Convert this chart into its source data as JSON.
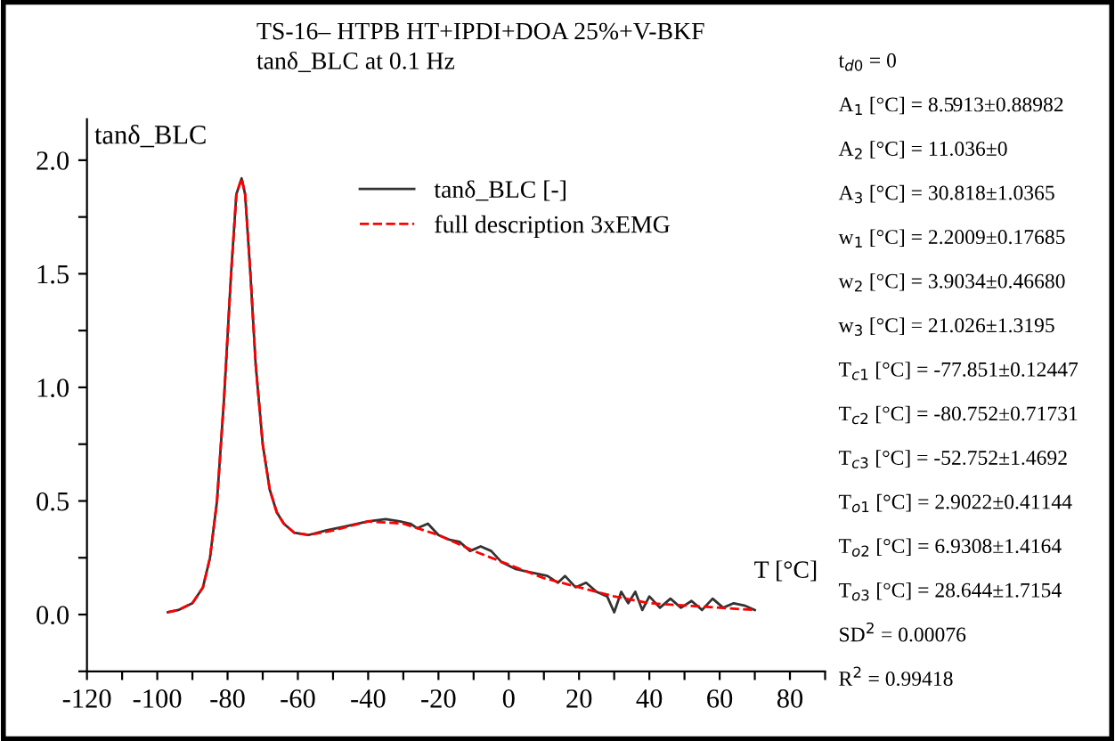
{
  "chart_data": {
    "type": "line",
    "title": "TS-16– HTPB HT+IPDI+DOA 25%+V-BKF",
    "subtitle": "tanδ_BLC at 0.1 Hz",
    "xlabel": "T [°C]",
    "ylabel": "tanδ_BLC",
    "series": [
      {
        "name": "tanδ_BLC [-]",
        "color": "#333333",
        "line_style": "solid",
        "x": [
          -97,
          -94,
          -90,
          -87,
          -85,
          -83,
          -81,
          -79,
          -77.5,
          -76,
          -75,
          -73.5,
          -72,
          -70,
          -68,
          -66,
          -64,
          -61,
          -57,
          -52,
          -46,
          -40,
          -35,
          -31,
          -28,
          -26,
          -23,
          -20,
          -17,
          -14,
          -11,
          -8,
          -5,
          -2,
          2,
          5,
          8,
          11,
          14,
          16,
          19,
          22,
          25,
          28,
          30,
          32,
          34,
          36,
          38,
          40,
          43,
          46,
          49,
          52,
          55,
          58,
          61,
          64,
          67,
          70
        ],
        "values": [
          0.01,
          0.02,
          0.05,
          0.12,
          0.25,
          0.5,
          0.95,
          1.5,
          1.85,
          1.92,
          1.85,
          1.5,
          1.1,
          0.75,
          0.55,
          0.45,
          0.4,
          0.36,
          0.35,
          0.37,
          0.39,
          0.41,
          0.42,
          0.41,
          0.4,
          0.38,
          0.4,
          0.35,
          0.33,
          0.32,
          0.28,
          0.3,
          0.28,
          0.23,
          0.2,
          0.19,
          0.18,
          0.17,
          0.14,
          0.17,
          0.12,
          0.14,
          0.1,
          0.08,
          0.01,
          0.1,
          0.05,
          0.1,
          0.02,
          0.08,
          0.03,
          0.07,
          0.03,
          0.06,
          0.02,
          0.07,
          0.03,
          0.05,
          0.04,
          0.02
        ]
      },
      {
        "name": "full description 3xEMG",
        "color": "#ff0000",
        "line_style": "dashed",
        "x": [
          -97,
          -94,
          -90,
          -87,
          -85,
          -83,
          -81,
          -79,
          -77.5,
          -76,
          -75,
          -73.5,
          -72,
          -70,
          -68,
          -66,
          -64,
          -61,
          -57,
          -50,
          -40,
          -30,
          -20,
          -10,
          0,
          10,
          20,
          30,
          40,
          50,
          60,
          70
        ],
        "values": [
          0.01,
          0.02,
          0.05,
          0.12,
          0.25,
          0.5,
          0.95,
          1.5,
          1.85,
          1.92,
          1.85,
          1.5,
          1.1,
          0.75,
          0.55,
          0.45,
          0.4,
          0.36,
          0.35,
          0.37,
          0.41,
          0.4,
          0.35,
          0.28,
          0.22,
          0.16,
          0.12,
          0.08,
          0.05,
          0.04,
          0.03,
          0.02
        ]
      }
    ],
    "xlim": [
      -120,
      90
    ],
    "ylim": [
      -0.25,
      2.18
    ],
    "xticks": [
      -120,
      {
        "value": -110,
        "label": null
      },
      -100,
      {
        "value": -90,
        "label": null
      },
      -80,
      {
        "value": -70,
        "label": null
      },
      -60,
      {
        "value": -50,
        "label": null
      },
      -40,
      {
        "value": -30,
        "label": null
      },
      -20,
      {
        "value": -10,
        "label": null
      },
      0,
      {
        "value": 10,
        "label": null
      },
      20,
      {
        "value": 30,
        "label": null
      },
      40,
      {
        "value": 50,
        "label": null
      },
      60,
      {
        "value": 70,
        "label": null
      },
      80,
      {
        "value": 90,
        "label": null
      }
    ],
    "yticks": [
      {
        "value": -0.25,
        "label": null
      },
      {
        "value": 0,
        "label": "0.0"
      },
      {
        "value": 0.25,
        "label": null
      },
      0.5,
      {
        "value": 0.75,
        "label": null
      },
      {
        "value": 1,
        "label": "1.0"
      },
      {
        "value": 1.25,
        "label": null
      },
      1.5,
      {
        "value": 1.75,
        "label": null
      },
      {
        "value": 2,
        "label": "2.0"
      }
    ],
    "grid": false,
    "legend": "top",
    "annotations": [
      "t$_{d0}$ = 0",
      "A$_{1}$ [°C] = 8.5913±0.88982",
      "A$_{2}$ [°C] = 11.036±0",
      "A$_{3}$ [°C] = 30.818±1.0365",
      "w$_{1}$ [°C] = 2.2009±0.17685",
      "w$_{2}$ [°C] = 3.9034±0.46680",
      "w$_{3}$ [°C] = 21.026±1.3195",
      "T$_{c1}$ [°C] = -77.851±0.12447",
      "T$_{c2}$ [°C] = -80.752±0.71731",
      "T$_{c3}$ [°C] = -52.752±1.4692",
      "T$_{o1}$ [°C] = 2.9022±0.41144",
      "T$_{o2}$ [°C] = 6.9308±1.4164",
      "T$_{o3}$ [°C] = 28.644±1.7154",
      "SD$^{2}$ = 0.00076",
      "R$^{2}$ = 0.99418"
    ]
  }
}
